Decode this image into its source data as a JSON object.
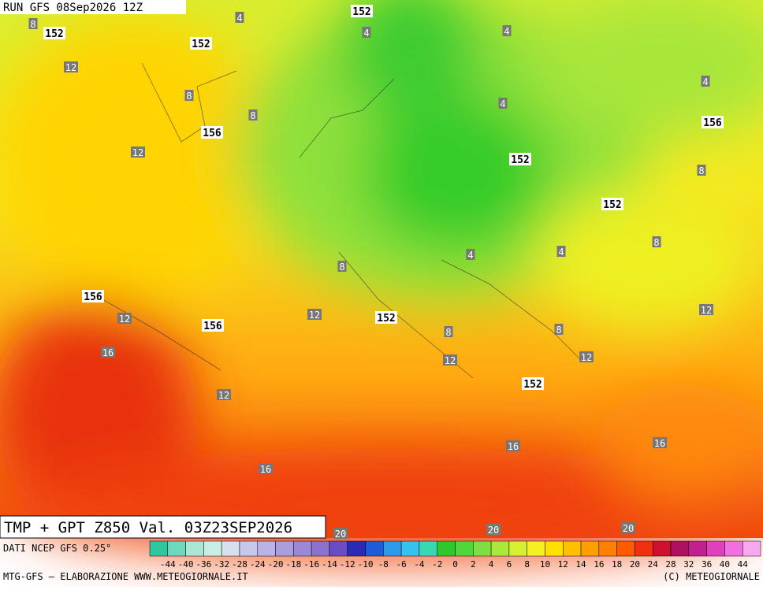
{
  "header": {
    "run": "RUN GFS 08Sep2026 12Z"
  },
  "map": {
    "temperature_labels": [
      4,
      8,
      4,
      4,
      12,
      4,
      8,
      4,
      8,
      12,
      8,
      8,
      8,
      4,
      4,
      12,
      12,
      12,
      8,
      8,
      16,
      12,
      12,
      12,
      16,
      16,
      16,
      20,
      20,
      20
    ],
    "height_labels": [
      152,
      152,
      152,
      156,
      156,
      152,
      152,
      156,
      156,
      152,
      152
    ]
  },
  "footer": {
    "title": "TMP + GPT Z850 Val. 03Z23SEP2026",
    "source": "DATI NCEP GFS 0.25°",
    "credit": "MTG-GFS – ELABORAZIONE WWW.METEOGIORNALE.IT",
    "copyright": "(C) METEOGIORNALE"
  },
  "scale": {
    "labels": [
      -44,
      -40,
      -36,
      -32,
      -28,
      -24,
      -20,
      -18,
      -16,
      -14,
      -12,
      -10,
      -8,
      -6,
      -4,
      -2,
      0,
      2,
      4,
      6,
      8,
      10,
      12,
      14,
      16,
      18,
      20,
      24,
      28,
      32,
      36,
      40,
      44
    ],
    "colors": [
      "#2fc6a0",
      "#6fd8bc",
      "#a9e6d6",
      "#c8eee4",
      "#d6e0ef",
      "#c8c8ec",
      "#b9b3e6",
      "#aa9ede",
      "#9b88d6",
      "#8c72ce",
      "#6a4cc4",
      "#2a2ab8",
      "#1f5ad8",
      "#2c9ae8",
      "#35c2ee",
      "#36d9b0",
      "#2dc82a",
      "#4fd83a",
      "#7ee040",
      "#aae83a",
      "#d4f030",
      "#f5f022",
      "#ffe000",
      "#ffc000",
      "#ffa000",
      "#ff8000",
      "#ff5a00",
      "#f03010",
      "#d01030",
      "#b01060",
      "#c02090",
      "#e040c0",
      "#f070e0",
      "#f8a8f0"
    ]
  }
}
